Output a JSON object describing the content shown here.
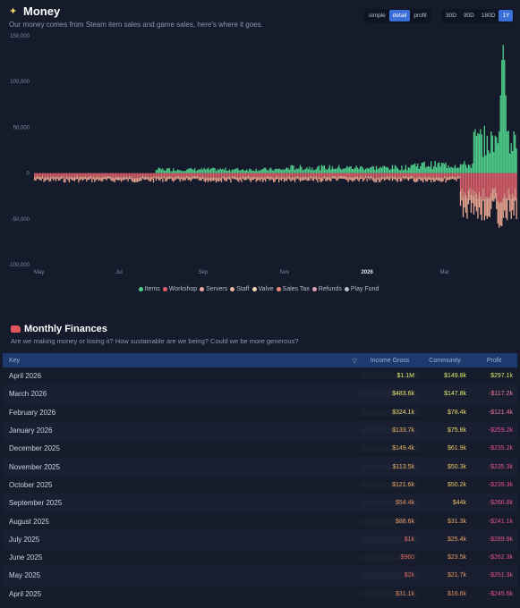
{
  "money": {
    "title": "Money",
    "subtitle": "Our money comes from Steam item sales and game sales, here's where it goes.",
    "mode_buttons": [
      "simple",
      "detail",
      "profit"
    ],
    "mode_active": "detail",
    "range_buttons": [
      "30D",
      "90D",
      "180D",
      "1Y"
    ],
    "range_active": "1Y"
  },
  "chart_data": {
    "type": "bar",
    "title": "",
    "stacked": true,
    "ylim": [
      -100000,
      150000
    ],
    "y_ticks": [
      "150,000",
      "100,000",
      "50,000",
      "0",
      "-50,000",
      "-100,000"
    ],
    "y_tick_values": [
      150000,
      100000,
      50000,
      0,
      -50000,
      -100000
    ],
    "x_ticks": [
      "May",
      "Jul",
      "Sep",
      "Nov",
      "2026",
      "Mar"
    ],
    "x_tick_bold": "2026",
    "x_tick_days": [
      0,
      61,
      123,
      184,
      245,
      304
    ],
    "x_start": "2025-04-26",
    "x_end": "2026-04-22",
    "legend": [
      {
        "name": "Items",
        "color": "#4fd18b"
      },
      {
        "name": "Workshop",
        "color": "#e3606a"
      },
      {
        "name": "Servers",
        "color": "#f0a9a0"
      },
      {
        "name": "Staff",
        "color": "#f2b8a5"
      },
      {
        "name": "Valve",
        "color": "#f5d3b3"
      },
      {
        "name": "Sales Tax",
        "color": "#ef8a7b"
      },
      {
        "name": "Refunds",
        "color": "#d9a0b0"
      },
      {
        "name": "Play Fund",
        "color": "#b9c0d0"
      }
    ],
    "series_note": "daily income (Items) positive, costs negative",
    "income_segments": [
      {
        "from": "2025-04-26",
        "to": "2025-07-25",
        "level": 0
      },
      {
        "from": "2025-07-26",
        "to": "2025-10-31",
        "level": 4000
      },
      {
        "from": "2025-11-01",
        "to": "2026-01-31",
        "level": 6000
      },
      {
        "from": "2026-02-01",
        "to": "2026-03-20",
        "level": 9000
      },
      {
        "from": "2026-03-21",
        "to": "2026-04-22",
        "level": 35000
      }
    ],
    "income_peak": {
      "date": "2026-04-12",
      "value": 140000
    },
    "cost_segments": [
      {
        "from": "2025-04-26",
        "to": "2026-03-10",
        "level": -8000
      },
      {
        "from": "2026-03-11",
        "to": "2026-04-22",
        "level": -40000
      }
    ],
    "cost_trough": {
      "date": "2026-04-10",
      "value": -78000
    }
  },
  "finances": {
    "title": "Monthly Finances",
    "subtitle": "Are we making money or losing it? How sustainable are we being? Could we be more generous?",
    "columns": [
      "Key",
      "Income Gross",
      "Community",
      "Profit"
    ],
    "rows": [
      {
        "key": "April 2026",
        "income": "$1.1M",
        "community": "$149.8k",
        "profit": "$297.1k",
        "ic": "#d6f06a",
        "cc": "#d6f06a",
        "pc": "#cfe866"
      },
      {
        "key": "March 2026",
        "income": "$483.6k",
        "community": "$147.8k",
        "profit": "-$117.2k",
        "ic": "#e7e36a",
        "cc": "#d6f06a",
        "pc": "#f07a9a"
      },
      {
        "key": "February 2026",
        "income": "$324.1k",
        "community": "$78.4k",
        "profit": "-$121.4k",
        "ic": "#e9d66a",
        "cc": "#e9dd6a",
        "pc": "#f07a9a"
      },
      {
        "key": "January 2026",
        "income": "$133.7k",
        "community": "$75.8k",
        "profit": "-$259.2k",
        "ic": "#e8b065",
        "cc": "#e9dd6a",
        "pc": "#e2558c"
      },
      {
        "key": "December 2025",
        "income": "$149.4k",
        "community": "$61.9k",
        "profit": "-$235.2k",
        "ic": "#e8b065",
        "cc": "#e8c868",
        "pc": "#e2558c"
      },
      {
        "key": "November 2025",
        "income": "$113.5k",
        "community": "$50.3k",
        "profit": "-$235.3k",
        "ic": "#e8a865",
        "cc": "#e8c468",
        "pc": "#e2558c"
      },
      {
        "key": "October 2025",
        "income": "$121.6k",
        "community": "$50.2k",
        "profit": "-$239.3k",
        "ic": "#e8a865",
        "cc": "#e8c468",
        "pc": "#e2558c"
      },
      {
        "key": "September 2025",
        "income": "$54.4k",
        "community": "$44k",
        "profit": "-$266.8k",
        "ic": "#e28f5e",
        "cc": "#e8b868",
        "pc": "#e2558c"
      },
      {
        "key": "August 2025",
        "income": "$88.6k",
        "community": "$31.3k",
        "profit": "-$241.1k",
        "ic": "#e89a62",
        "cc": "#e8a865",
        "pc": "#e2558c"
      },
      {
        "key": "July 2025",
        "income": "$1k",
        "community": "$25.4k",
        "profit": "-$289.9k",
        "ic": "#d96b5a",
        "cc": "#e8a062",
        "pc": "#e2558c"
      },
      {
        "key": "June 2025",
        "income": "$960",
        "community": "$23.5k",
        "profit": "-$262.3k",
        "ic": "#d96b5a",
        "cc": "#e89c62",
        "pc": "#e2558c"
      },
      {
        "key": "May 2025",
        "income": "$2k",
        "community": "$21.7k",
        "profit": "-$251.3k",
        "ic": "#d96b5a",
        "cc": "#e89862",
        "pc": "#e2558c"
      },
      {
        "key": "April 2025",
        "income": "$31.1k",
        "community": "$16.6k",
        "profit": "-$245.6k",
        "ic": "#de8a5c",
        "cc": "#e2905e",
        "pc": "#e2558c"
      }
    ]
  }
}
